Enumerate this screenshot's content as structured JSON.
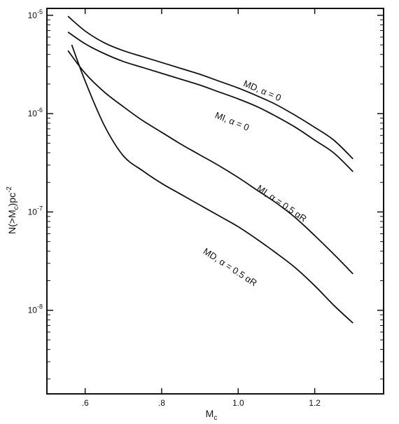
{
  "chart_data": {
    "type": "line",
    "xlabel": "Mc",
    "ylabel": "N(>Mc)pc-2",
    "xlim": [
      0.5,
      1.38
    ],
    "ylim_log10": [
      -8.85,
      -4.93
    ],
    "yscale": "log",
    "grid": false,
    "x_ticks": [
      {
        "value": 0.6,
        "label": ".6"
      },
      {
        "value": 0.8,
        "label": ".8"
      },
      {
        "value": 1.0,
        "label": "1.0"
      },
      {
        "value": 1.2,
        "label": "1.2"
      }
    ],
    "y_ticks": [
      {
        "log10": -5,
        "base": "10",
        "exp": "-5"
      },
      {
        "log10": -6,
        "base": "10",
        "exp": "-6"
      },
      {
        "log10": -7,
        "base": "10",
        "exp": "-7"
      },
      {
        "log10": -8,
        "base": "10",
        "exp": "-8"
      }
    ],
    "series": [
      {
        "name": "MD, α = 0",
        "x": [
          0.555,
          0.6,
          0.65,
          0.7,
          0.75,
          0.8,
          0.85,
          0.9,
          0.95,
          1.0,
          1.05,
          1.1,
          1.15,
          1.2,
          1.25,
          1.3
        ],
        "y_log10": [
          -5.01,
          -5.16,
          -5.28,
          -5.36,
          -5.42,
          -5.48,
          -5.54,
          -5.6,
          -5.67,
          -5.74,
          -5.82,
          -5.91,
          -6.02,
          -6.14,
          -6.27,
          -6.46
        ]
      },
      {
        "name": "MI, α = 0",
        "x": [
          0.555,
          0.6,
          0.65,
          0.7,
          0.75,
          0.8,
          0.85,
          0.9,
          0.95,
          1.0,
          1.05,
          1.1,
          1.15,
          1.2,
          1.25,
          1.3
        ],
        "y_log10": [
          -5.17,
          -5.29,
          -5.39,
          -5.47,
          -5.53,
          -5.59,
          -5.65,
          -5.71,
          -5.78,
          -5.85,
          -5.93,
          -6.03,
          -6.14,
          -6.27,
          -6.4,
          -6.59
        ]
      },
      {
        "name": "MI, α = 0.5 αR",
        "x": [
          0.555,
          0.6,
          0.65,
          0.7,
          0.75,
          0.8,
          0.85,
          0.9,
          0.95,
          1.0,
          1.05,
          1.1,
          1.15,
          1.2,
          1.25,
          1.3
        ],
        "y_log10": [
          -5.36,
          -5.59,
          -5.78,
          -5.93,
          -6.07,
          -6.19,
          -6.31,
          -6.42,
          -6.53,
          -6.65,
          -6.78,
          -6.91,
          -7.06,
          -7.24,
          -7.43,
          -7.63
        ]
      },
      {
        "name": "MD, α = 0.5 αR",
        "x": [
          0.565,
          0.6,
          0.65,
          0.7,
          0.75,
          0.8,
          0.85,
          0.9,
          0.95,
          1.0,
          1.05,
          1.1,
          1.15,
          1.2,
          1.25,
          1.3
        ],
        "y_log10": [
          -5.3,
          -5.67,
          -6.12,
          -6.43,
          -6.58,
          -6.71,
          -6.82,
          -6.93,
          -7.04,
          -7.15,
          -7.28,
          -7.42,
          -7.57,
          -7.75,
          -7.95,
          -8.13
        ]
      }
    ],
    "curve_labels": [
      {
        "text": "MD, α = 0",
        "series": 0
      },
      {
        "text": "MI, α = 0",
        "series": 1
      },
      {
        "text": "MI, α = 0.5 αR",
        "series": 2
      },
      {
        "text": "MD, α = 0.5 αR",
        "series": 3
      }
    ]
  }
}
